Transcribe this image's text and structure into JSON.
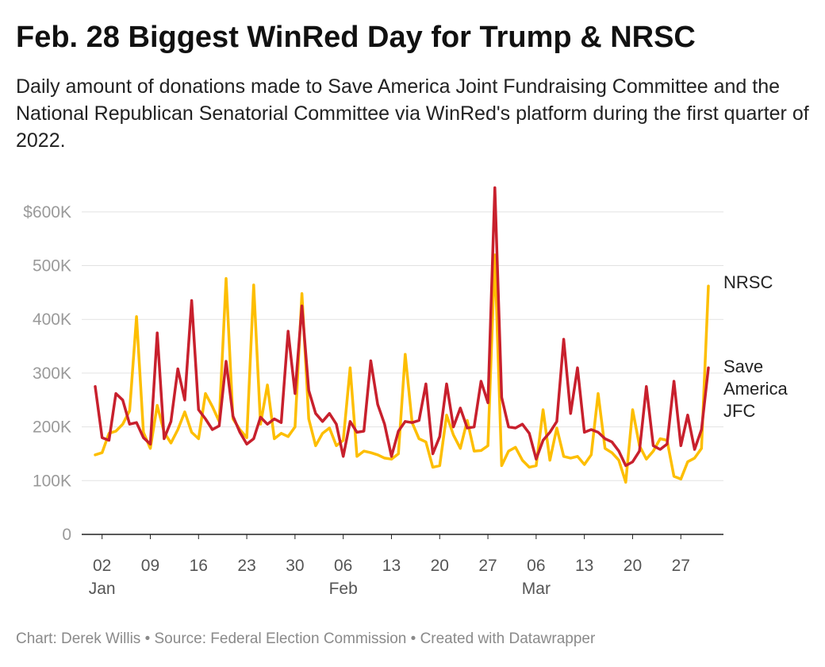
{
  "title": "Feb. 28 Biggest WinRed Day for Trump & NRSC",
  "subtitle": "Daily amount of donations made to Save America Joint Fundraising Committee and the National Republican Senatorial Committee via WinRed's platform during the first quarter of 2022.",
  "footer": "Chart: Derek Willis • Source: Federal Election Commission • Created with Datawrapper",
  "colors": {
    "nrsc": "#FDBE00",
    "save_america": "#C8202D",
    "grid": "#e2e2e2",
    "axis": "#222222"
  },
  "chart_data": {
    "type": "line",
    "x_start": "2022-01-01",
    "x_end": "2022-03-31",
    "ylim": [
      0,
      650000
    ],
    "y_ticks": [
      {
        "value": 0,
        "label": "0"
      },
      {
        "value": 100000,
        "label": "100K"
      },
      {
        "value": 200000,
        "label": "200K"
      },
      {
        "value": 300000,
        "label": "300K"
      },
      {
        "value": 400000,
        "label": "400K"
      },
      {
        "value": 500000,
        "label": "500K"
      },
      {
        "value": 600000,
        "label": "$600K"
      }
    ],
    "x_ticks": [
      {
        "date": "2022-01-02",
        "label": "02",
        "month": "Jan"
      },
      {
        "date": "2022-01-09",
        "label": "09",
        "month": ""
      },
      {
        "date": "2022-01-16",
        "label": "16",
        "month": ""
      },
      {
        "date": "2022-01-23",
        "label": "23",
        "month": ""
      },
      {
        "date": "2022-01-30",
        "label": "30",
        "month": ""
      },
      {
        "date": "2022-02-06",
        "label": "06",
        "month": "Feb"
      },
      {
        "date": "2022-02-13",
        "label": "13",
        "month": ""
      },
      {
        "date": "2022-02-20",
        "label": "20",
        "month": ""
      },
      {
        "date": "2022-02-27",
        "label": "27",
        "month": ""
      },
      {
        "date": "2022-03-06",
        "label": "06",
        "month": "Mar"
      },
      {
        "date": "2022-03-13",
        "label": "13",
        "month": ""
      },
      {
        "date": "2022-03-20",
        "label": "20",
        "month": ""
      },
      {
        "date": "2022-03-27",
        "label": "27",
        "month": ""
      }
    ],
    "series": [
      {
        "name": "NRSC",
        "color": "#FDBE00",
        "label_lines": [
          "NRSC"
        ],
        "values": [
          148000,
          152000,
          188000,
          192000,
          205000,
          230000,
          405000,
          190000,
          160000,
          240000,
          190000,
          170000,
          195000,
          228000,
          190000,
          178000,
          262000,
          238000,
          210000,
          476000,
          215000,
          195000,
          180000,
          464000,
          205000,
          278000,
          178000,
          188000,
          182000,
          200000,
          448000,
          215000,
          165000,
          188000,
          198000,
          165000,
          175000,
          310000,
          145000,
          155000,
          152000,
          148000,
          142000,
          140000,
          150000,
          335000,
          208000,
          178000,
          172000,
          125000,
          128000,
          222000,
          185000,
          160000,
          212000,
          155000,
          156000,
          165000,
          520000,
          128000,
          155000,
          162000,
          138000,
          125000,
          128000,
          232000,
          138000,
          198000,
          145000,
          142000,
          145000,
          130000,
          148000,
          262000,
          160000,
          152000,
          138000,
          97000,
          232000,
          165000,
          140000,
          155000,
          178000,
          175000,
          108000,
          103000,
          135000,
          142000,
          160000,
          462000
        ]
      },
      {
        "name": "Save America JFC",
        "color": "#C8202D",
        "label_lines": [
          "Save",
          "America",
          "JFC"
        ],
        "values": [
          275000,
          180000,
          175000,
          262000,
          250000,
          205000,
          208000,
          180000,
          168000,
          375000,
          178000,
          210000,
          308000,
          250000,
          435000,
          232000,
          215000,
          195000,
          202000,
          322000,
          220000,
          190000,
          168000,
          178000,
          218000,
          205000,
          215000,
          208000,
          378000,
          262000,
          425000,
          268000,
          225000,
          210000,
          225000,
          205000,
          145000,
          210000,
          190000,
          192000,
          323000,
          242000,
          205000,
          145000,
          192000,
          210000,
          208000,
          212000,
          280000,
          150000,
          182000,
          280000,
          200000,
          235000,
          198000,
          200000,
          285000,
          245000,
          645000,
          255000,
          200000,
          198000,
          205000,
          188000,
          140000,
          175000,
          190000,
          210000,
          363000,
          225000,
          310000,
          190000,
          195000,
          190000,
          178000,
          172000,
          155000,
          128000,
          135000,
          155000,
          275000,
          165000,
          158000,
          168000,
          285000,
          165000,
          222000,
          158000,
          195000,
          310000
        ]
      }
    ]
  }
}
